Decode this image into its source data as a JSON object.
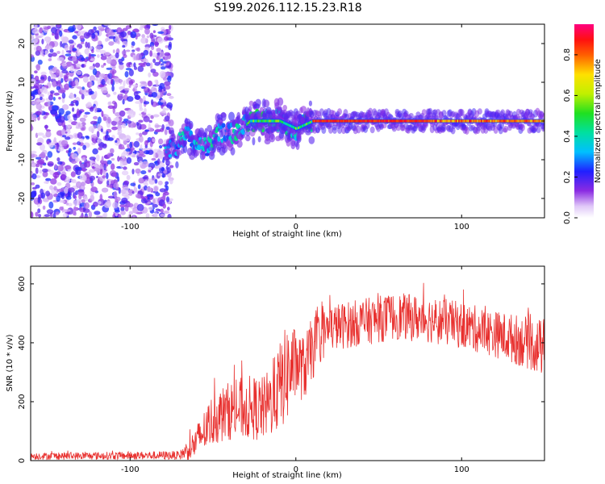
{
  "title": "S199.2026.112.15.23.R18",
  "chart_data": [
    {
      "type": "heatmap",
      "xlabel": "Height of straight line (km)",
      "ylabel": "Frequency (Hz)",
      "xlim": [
        -160,
        150
      ],
      "ylim": [
        -25,
        25
      ],
      "xticks": [
        -100,
        0,
        100
      ],
      "xtick_labels": [
        "-100",
        "0",
        "100"
      ],
      "yticks": [
        -20,
        -10,
        0,
        10,
        20
      ],
      "ytick_labels": [
        "-20",
        "-10",
        "0",
        "10",
        "20"
      ],
      "colorbar": {
        "label": "Normalized spectral amplitude",
        "range": [
          0.0,
          0.95
        ],
        "ticks": [
          0.0,
          0.2,
          0.4,
          0.6,
          0.8
        ],
        "tick_labels": [
          "0.0",
          "0.2",
          "0.4",
          "0.6",
          "0.8"
        ],
        "colormap": "rainbow"
      },
      "description_regions": {
        "noise_region_x": [
          -160,
          -75
        ],
        "noise_amplitude_range": [
          0.05,
          0.25
        ],
        "transition_track": [
          [
            -75,
            -7
          ],
          [
            -65,
            -4
          ],
          [
            -55,
            -7
          ],
          [
            -45,
            -3
          ],
          [
            -35,
            -3
          ],
          [
            -28,
            0
          ],
          [
            -10,
            0
          ],
          [
            0,
            -2
          ],
          [
            10,
            0
          ],
          [
            150,
            0
          ]
        ],
        "strong_band_x": [
          10,
          150
        ],
        "strong_band_frequency": 0,
        "strong_band_amplitude": 0.9
      }
    },
    {
      "type": "line",
      "xlabel": "Height of straight line (km)",
      "ylabel": "SNR (10 * v/v)",
      "xlim": [
        -160,
        150
      ],
      "ylim": [
        0,
        660
      ],
      "xticks": [
        -100,
        0,
        100
      ],
      "xtick_labels": [
        "-100",
        "0",
        "100"
      ],
      "yticks": [
        0,
        200,
        400,
        600
      ],
      "ytick_labels": [
        "0",
        "200",
        "400",
        "600"
      ],
      "line_color": "#e8302e",
      "envelope": {
        "x": [
          -160,
          -70,
          -62,
          -50,
          -40,
          -30,
          -20,
          -15,
          -10,
          -5,
          0,
          5,
          10,
          15,
          20,
          40,
          60,
          80,
          100,
          120,
          140,
          150
        ],
        "mean": [
          15,
          18,
          50,
          140,
          170,
          180,
          175,
          200,
          250,
          300,
          330,
          310,
          380,
          420,
          450,
          470,
          490,
          480,
          460,
          430,
          400,
          380
        ],
        "spread": [
          12,
          15,
          50,
          90,
          100,
          110,
          110,
          120,
          150,
          170,
          120,
          110,
          110,
          90,
          80,
          80,
          80,
          80,
          80,
          80,
          90,
          100
        ]
      }
    }
  ]
}
